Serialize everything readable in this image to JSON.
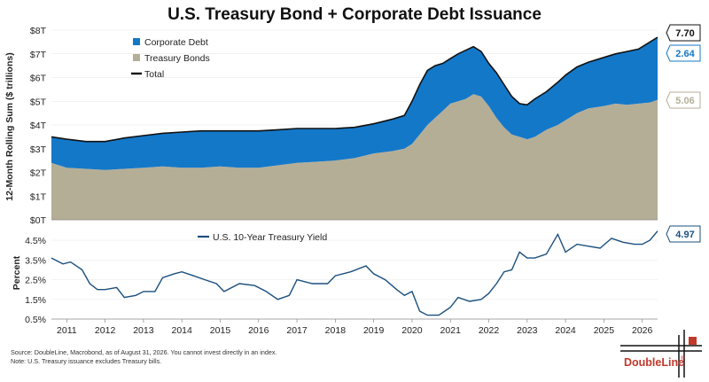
{
  "colors": {
    "corporate": "#1478c8",
    "treasury": "#b5ae97",
    "total": "#111111",
    "yield": "#1a4f7e",
    "brand_red": "#c0392b"
  },
  "chart_data": [
    {
      "type": "area",
      "title": "U.S. Treasury Bond + Corporate Debt Issuance",
      "ylabel": "12-Month Rolling Sum ($ trillions)",
      "ylim": [
        0,
        8
      ],
      "yticks": [
        "$0T",
        "$1T",
        "$2T",
        "$3T",
        "$4T",
        "$5T",
        "$6T",
        "$7T",
        "$8T"
      ],
      "x_range": [
        2010.6,
        2026.4
      ],
      "stacked": true,
      "legend_position": "top-left",
      "legend": [
        "Corporate Debt",
        "Treasury Bonds",
        "Total"
      ],
      "x": [
        2010.6,
        2011.0,
        2011.5,
        2012.0,
        2012.5,
        2013.0,
        2013.5,
        2014.0,
        2014.5,
        2015.0,
        2015.5,
        2016.0,
        2016.5,
        2017.0,
        2017.5,
        2018.0,
        2018.5,
        2019.0,
        2019.5,
        2019.8,
        2020.0,
        2020.2,
        2020.4,
        2020.6,
        2020.8,
        2021.0,
        2021.2,
        2021.4,
        2021.6,
        2021.8,
        2022.0,
        2022.2,
        2022.4,
        2022.6,
        2022.8,
        2023.0,
        2023.2,
        2023.5,
        2023.8,
        2024.0,
        2024.3,
        2024.6,
        2025.0,
        2025.3,
        2025.6,
        2025.9,
        2026.2,
        2026.4
      ],
      "series": [
        {
          "name": "Treasury Bonds",
          "values": [
            2.4,
            2.2,
            2.15,
            2.1,
            2.15,
            2.2,
            2.25,
            2.2,
            2.2,
            2.25,
            2.2,
            2.2,
            2.3,
            2.4,
            2.45,
            2.5,
            2.6,
            2.8,
            2.9,
            3.0,
            3.2,
            3.6,
            4.0,
            4.3,
            4.6,
            4.9,
            5.0,
            5.1,
            5.3,
            5.2,
            4.8,
            4.3,
            3.9,
            3.6,
            3.5,
            3.4,
            3.5,
            3.8,
            4.0,
            4.2,
            4.5,
            4.7,
            4.8,
            4.9,
            4.85,
            4.9,
            4.95,
            5.06
          ]
        },
        {
          "name": "Corporate Debt",
          "values": [
            1.1,
            1.2,
            1.15,
            1.2,
            1.3,
            1.35,
            1.4,
            1.5,
            1.55,
            1.5,
            1.55,
            1.55,
            1.5,
            1.45,
            1.4,
            1.35,
            1.3,
            1.25,
            1.35,
            1.4,
            1.8,
            2.1,
            2.3,
            2.2,
            2.0,
            1.9,
            2.0,
            2.05,
            2.0,
            1.9,
            1.8,
            1.9,
            1.8,
            1.6,
            1.4,
            1.45,
            1.6,
            1.6,
            1.8,
            1.9,
            1.95,
            1.95,
            2.05,
            2.1,
            2.25,
            2.3,
            2.55,
            2.64
          ]
        }
      ],
      "annotations": [
        "7.70",
        "2.64",
        "5.06"
      ]
    },
    {
      "type": "line",
      "ylabel": "Percent",
      "ylim": [
        0.5,
        5.0
      ],
      "yticks": [
        "0.5%",
        "1.5%",
        "2.5%",
        "3.5%",
        "4.5%"
      ],
      "x_range": [
        2010.6,
        2026.4
      ],
      "xticks": [
        "2011",
        "2012",
        "2013",
        "2014",
        "2015",
        "2016",
        "2017",
        "2018",
        "2019",
        "2020",
        "2021",
        "2022",
        "2023",
        "2024",
        "2025",
        "2026"
      ],
      "legend_position": "top-center",
      "series": [
        {
          "name": "U.S. 10-Year Treasury Yield",
          "x": [
            2010.6,
            2010.9,
            2011.1,
            2011.4,
            2011.6,
            2011.8,
            2012.0,
            2012.3,
            2012.5,
            2012.8,
            2013.0,
            2013.3,
            2013.5,
            2013.8,
            2014.0,
            2014.3,
            2014.6,
            2014.9,
            2015.1,
            2015.5,
            2015.9,
            2016.2,
            2016.5,
            2016.8,
            2017.0,
            2017.4,
            2017.8,
            2018.0,
            2018.4,
            2018.8,
            2019.0,
            2019.3,
            2019.6,
            2019.8,
            2020.0,
            2020.2,
            2020.4,
            2020.7,
            2021.0,
            2021.2,
            2021.5,
            2021.8,
            2022.0,
            2022.2,
            2022.4,
            2022.6,
            2022.8,
            2023.0,
            2023.2,
            2023.5,
            2023.8,
            2024.0,
            2024.3,
            2024.6,
            2024.9,
            2025.2,
            2025.5,
            2025.8,
            2026.0,
            2026.2,
            2026.4
          ],
          "values": [
            3.6,
            3.3,
            3.4,
            3.0,
            2.3,
            2.0,
            2.0,
            2.1,
            1.6,
            1.7,
            1.9,
            1.9,
            2.6,
            2.8,
            2.9,
            2.7,
            2.5,
            2.3,
            1.9,
            2.3,
            2.2,
            1.9,
            1.5,
            1.7,
            2.5,
            2.3,
            2.3,
            2.7,
            2.9,
            3.2,
            2.8,
            2.5,
            2.0,
            1.7,
            1.9,
            0.9,
            0.7,
            0.7,
            1.1,
            1.6,
            1.4,
            1.5,
            1.8,
            2.3,
            2.9,
            3.0,
            3.9,
            3.6,
            3.6,
            3.8,
            4.8,
            3.9,
            4.3,
            4.2,
            4.1,
            4.6,
            4.4,
            4.3,
            4.3,
            4.5,
            4.97
          ]
        }
      ],
      "annotations": [
        "4.97"
      ]
    }
  ],
  "footer": {
    "source": "Source: DoubleLine, Macrobond, as of August 31, 2026. You cannot invest directly in an index.",
    "note": "Note: U.S. Treasury issuance excludes Treasury bills."
  },
  "brand": {
    "logo_text": "DoubleLine",
    "mark": "®"
  }
}
